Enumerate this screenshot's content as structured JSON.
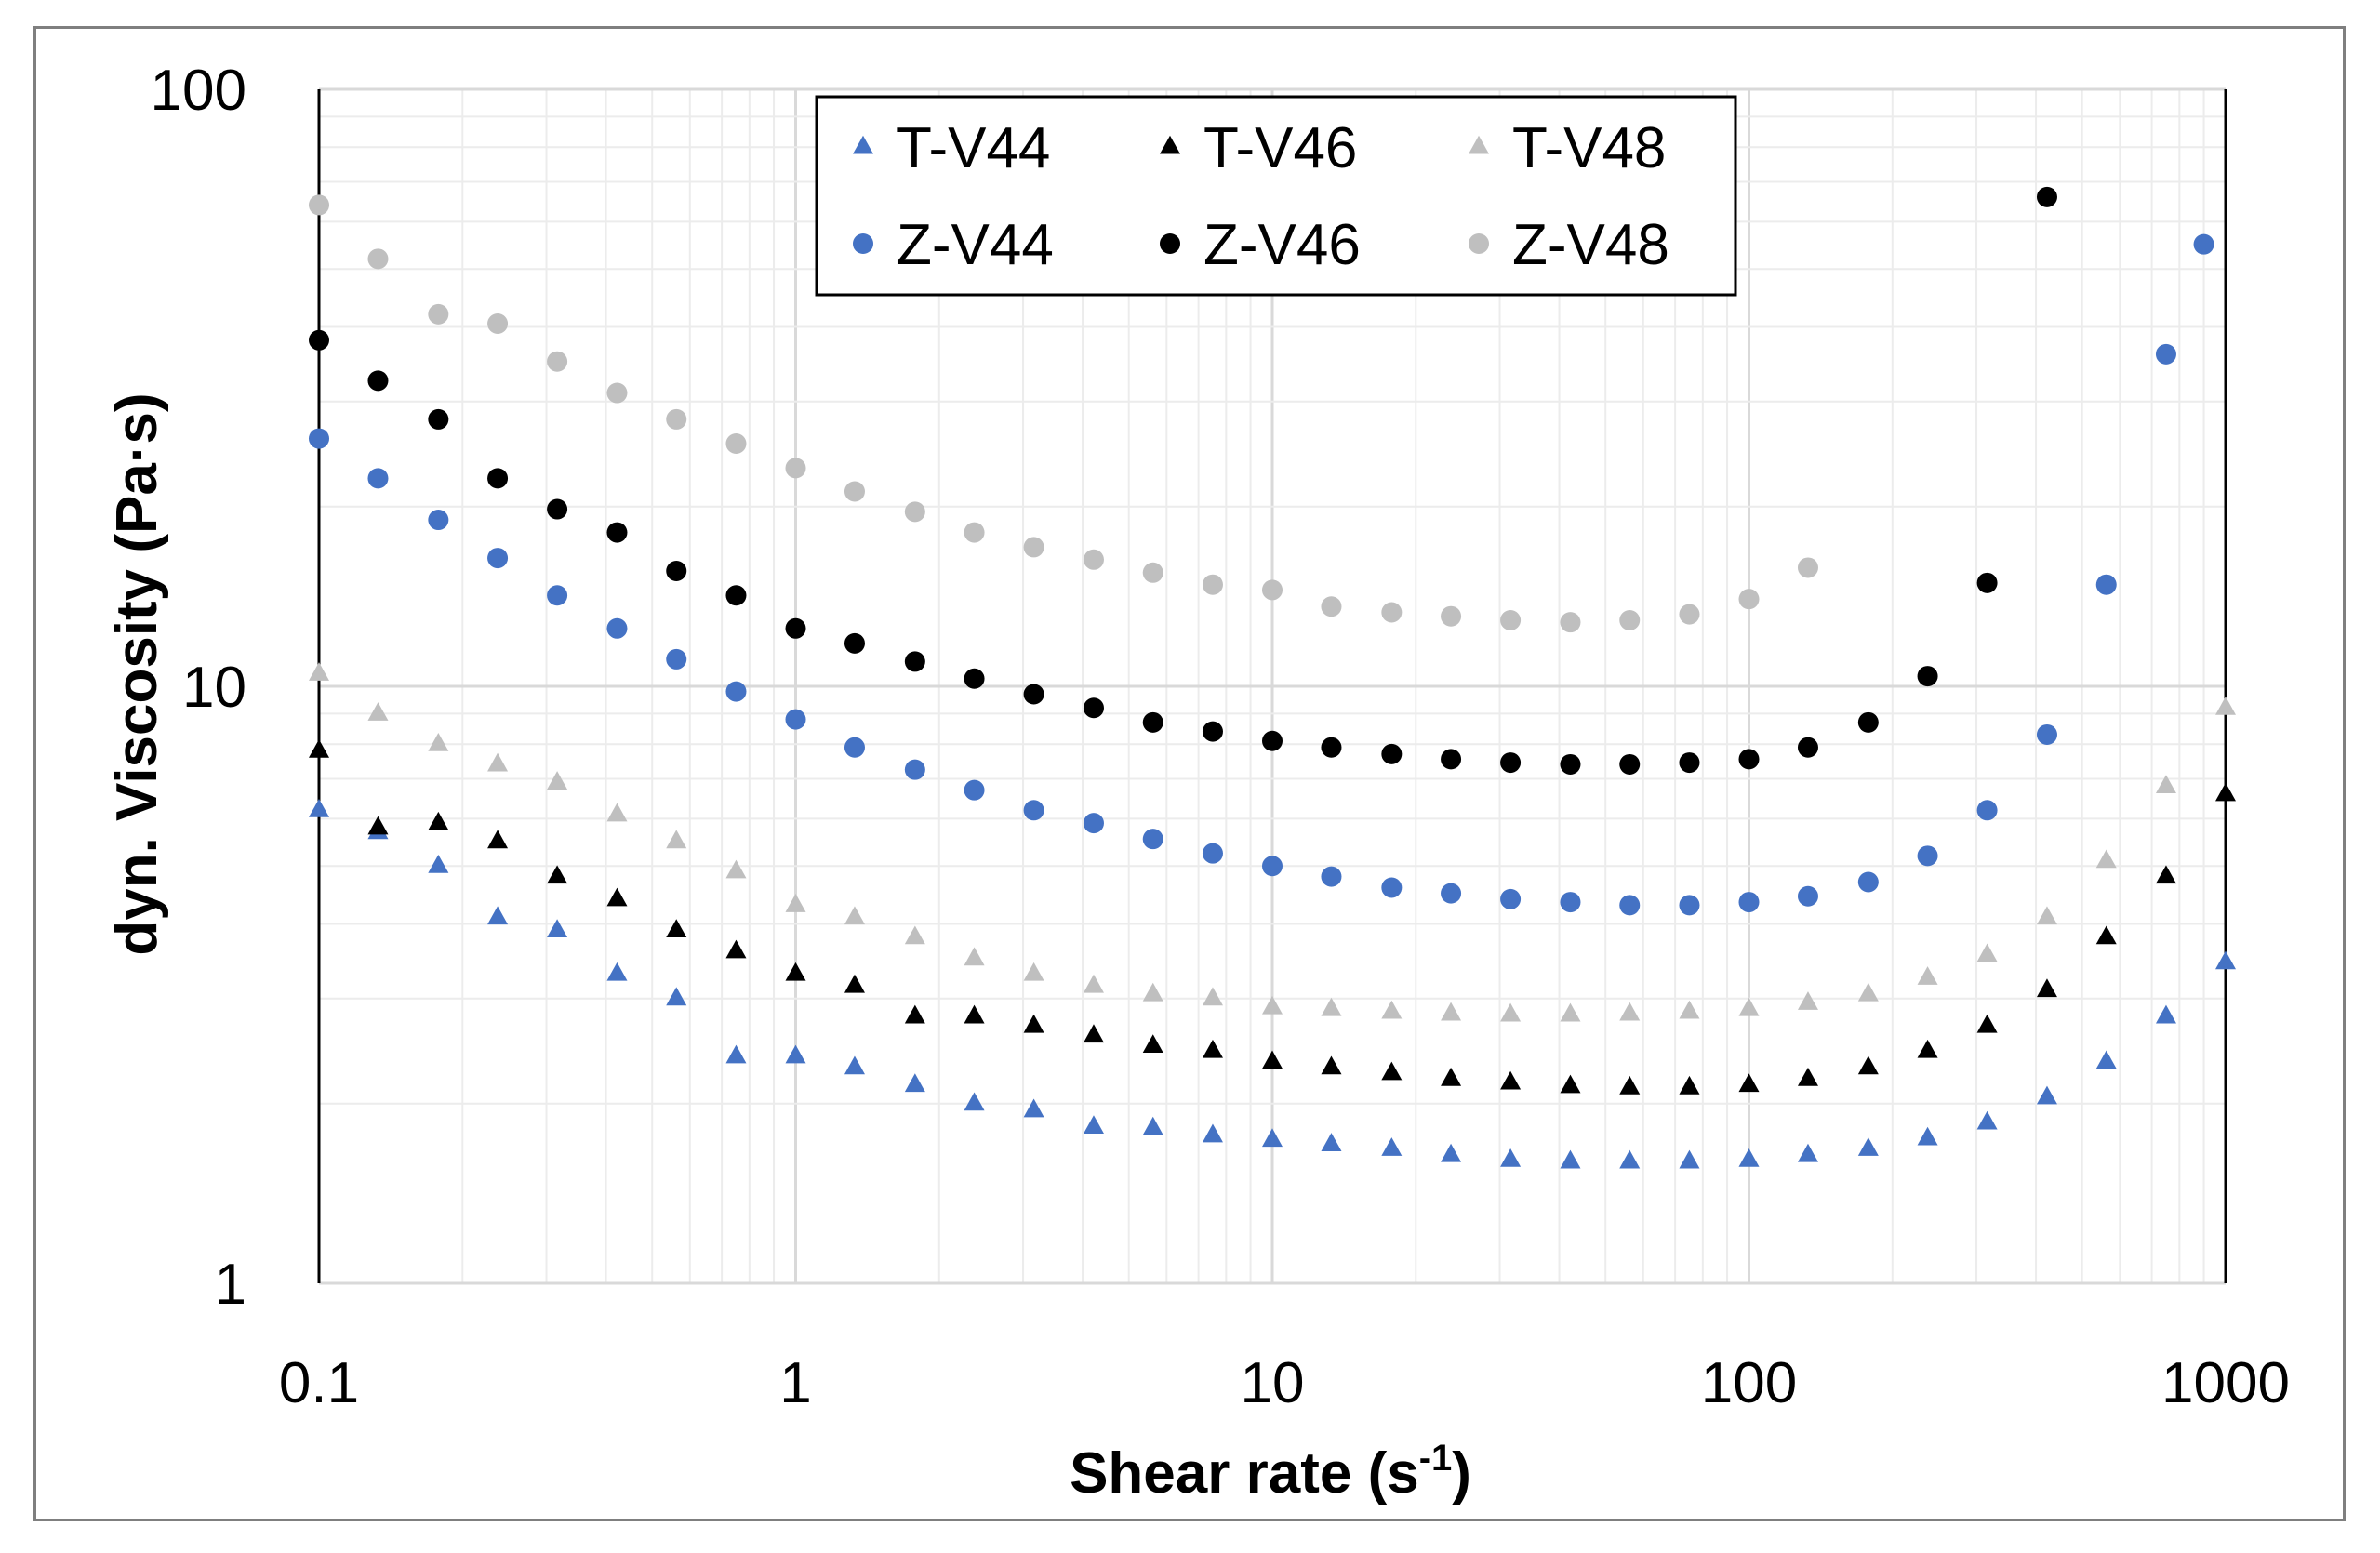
{
  "chart_data": {
    "type": "scatter",
    "title": "",
    "xlabel": "Shear rate (s",
    "xlabel_superscript": "-1",
    "xlabel_suffix": ")",
    "ylabel": "dyn. Viscosity (Pa·s)",
    "xscale": "log",
    "yscale": "log",
    "xlim": [
      0.1,
      1000
    ],
    "ylim": [
      1,
      100
    ],
    "x_ticks": [
      "0.1",
      "1",
      "10",
      "100",
      "1000"
    ],
    "y_ticks": [
      "1",
      "10",
      "100"
    ],
    "grid": true,
    "legend_position": "top-center",
    "colors": {
      "V44": "#4472C4",
      "V46": "#000000",
      "V48": "#BFBFBF"
    },
    "series": [
      {
        "name": "T-V44",
        "marker": "triangle",
        "color": "#4472C4",
        "x": [
          0.1,
          0.133,
          0.178,
          0.237,
          0.316,
          0.422,
          0.562,
          0.75,
          1,
          1.33,
          1.78,
          2.37,
          3.16,
          4.22,
          5.62,
          7.5,
          10,
          13.3,
          17.8,
          23.7,
          31.6,
          42.2,
          56.2,
          75,
          100,
          133,
          178,
          237,
          316,
          422,
          562,
          750,
          1000
        ],
        "y": [
          6.2,
          5.7,
          5.0,
          4.1,
          3.9,
          3.3,
          3.0,
          2.4,
          2.4,
          2.3,
          2.15,
          2.0,
          1.95,
          1.83,
          1.82,
          1.77,
          1.74,
          1.71,
          1.68,
          1.64,
          1.61,
          1.6,
          1.6,
          1.6,
          1.61,
          1.64,
          1.68,
          1.75,
          1.86,
          2.05,
          2.35,
          2.8,
          3.45
        ]
      },
      {
        "name": "T-V46",
        "marker": "triangle",
        "color": "#000000",
        "x": [
          0.1,
          0.133,
          0.178,
          0.237,
          0.316,
          0.422,
          0.562,
          0.75,
          1,
          1.33,
          1.78,
          2.37,
          3.16,
          4.22,
          5.62,
          7.5,
          10,
          13.3,
          17.8,
          23.7,
          31.6,
          42.2,
          56.2,
          75,
          100,
          133,
          178,
          237,
          316,
          422,
          562,
          750,
          1000
        ],
        "y": [
          7.8,
          5.8,
          5.9,
          5.5,
          4.8,
          4.4,
          3.9,
          3.6,
          3.3,
          3.15,
          2.8,
          2.8,
          2.7,
          2.6,
          2.5,
          2.45,
          2.35,
          2.3,
          2.25,
          2.2,
          2.17,
          2.14,
          2.13,
          2.13,
          2.15,
          2.2,
          2.3,
          2.45,
          2.7,
          3.1,
          3.8,
          4.8,
          6.6
        ]
      },
      {
        "name": "T-V48",
        "marker": "triangle",
        "color": "#BFBFBF",
        "x": [
          0.1,
          0.133,
          0.178,
          0.237,
          0.316,
          0.422,
          0.562,
          0.75,
          1,
          1.33,
          1.78,
          2.37,
          3.16,
          4.22,
          5.62,
          7.5,
          10,
          13.3,
          17.8,
          23.7,
          31.6,
          42.2,
          56.2,
          75,
          100,
          133,
          178,
          237,
          316,
          422,
          562,
          750,
          1000
        ],
        "y": [
          10.5,
          9.0,
          8.0,
          7.4,
          6.9,
          6.1,
          5.5,
          4.9,
          4.3,
          4.1,
          3.8,
          3.5,
          3.3,
          3.15,
          3.05,
          3.0,
          2.9,
          2.88,
          2.85,
          2.83,
          2.82,
          2.82,
          2.83,
          2.85,
          2.88,
          2.95,
          3.05,
          3.25,
          3.55,
          4.1,
          5.1,
          6.8,
          9.2
        ]
      },
      {
        "name": "Z-V44",
        "marker": "circle",
        "color": "#4472C4",
        "x": [
          0.1,
          0.133,
          0.178,
          0.237,
          0.316,
          0.422,
          0.562,
          0.75,
          1,
          1.33,
          1.78,
          2.37,
          3.16,
          4.22,
          5.62,
          7.5,
          10,
          13.3,
          17.8,
          23.7,
          31.6,
          42.2,
          56.2,
          75,
          100,
          133,
          178,
          237,
          316,
          422,
          562,
          750,
          900
        ],
        "y": [
          26,
          22.3,
          19,
          16.4,
          14.2,
          12.5,
          11.1,
          9.8,
          8.8,
          7.9,
          7.25,
          6.7,
          6.2,
          5.9,
          5.55,
          5.25,
          5.0,
          4.8,
          4.6,
          4.5,
          4.4,
          4.35,
          4.3,
          4.3,
          4.35,
          4.45,
          4.7,
          5.2,
          6.2,
          8.3,
          14.8,
          36,
          55
        ]
      },
      {
        "name": "Z-V46",
        "marker": "circle",
        "color": "#000000",
        "x": [
          0.1,
          0.133,
          0.178,
          0.237,
          0.316,
          0.422,
          0.562,
          0.75,
          1,
          1.33,
          1.78,
          2.37,
          3.16,
          4.22,
          5.62,
          7.5,
          10,
          13.3,
          17.8,
          23.7,
          31.6,
          42.2,
          56.2,
          75,
          100,
          133,
          178,
          237,
          316,
          422
        ],
        "y": [
          38,
          32.5,
          28,
          22.3,
          19.8,
          18.1,
          15.6,
          14.2,
          12.5,
          11.8,
          11.0,
          10.3,
          9.7,
          9.2,
          8.7,
          8.4,
          8.1,
          7.9,
          7.7,
          7.55,
          7.45,
          7.4,
          7.4,
          7.45,
          7.55,
          7.9,
          8.7,
          10.4,
          14.9,
          66
        ]
      },
      {
        "name": "Z-V48",
        "marker": "circle",
        "color": "#BFBFBF",
        "x": [
          0.1,
          0.133,
          0.178,
          0.237,
          0.316,
          0.422,
          0.562,
          0.75,
          1,
          1.33,
          1.78,
          2.37,
          3.16,
          4.22,
          5.62,
          7.5,
          10,
          13.3,
          17.8,
          23.7,
          31.6,
          42.2,
          56.2,
          75,
          100,
          133
        ],
        "y": [
          64,
          52,
          42,
          40.5,
          35,
          31,
          28,
          25.5,
          23.2,
          21.2,
          19.6,
          18.1,
          17.1,
          16.3,
          15.5,
          14.8,
          14.5,
          13.6,
          13.3,
          13.1,
          12.9,
          12.8,
          12.9,
          13.2,
          14,
          15.8
        ]
      }
    ]
  }
}
